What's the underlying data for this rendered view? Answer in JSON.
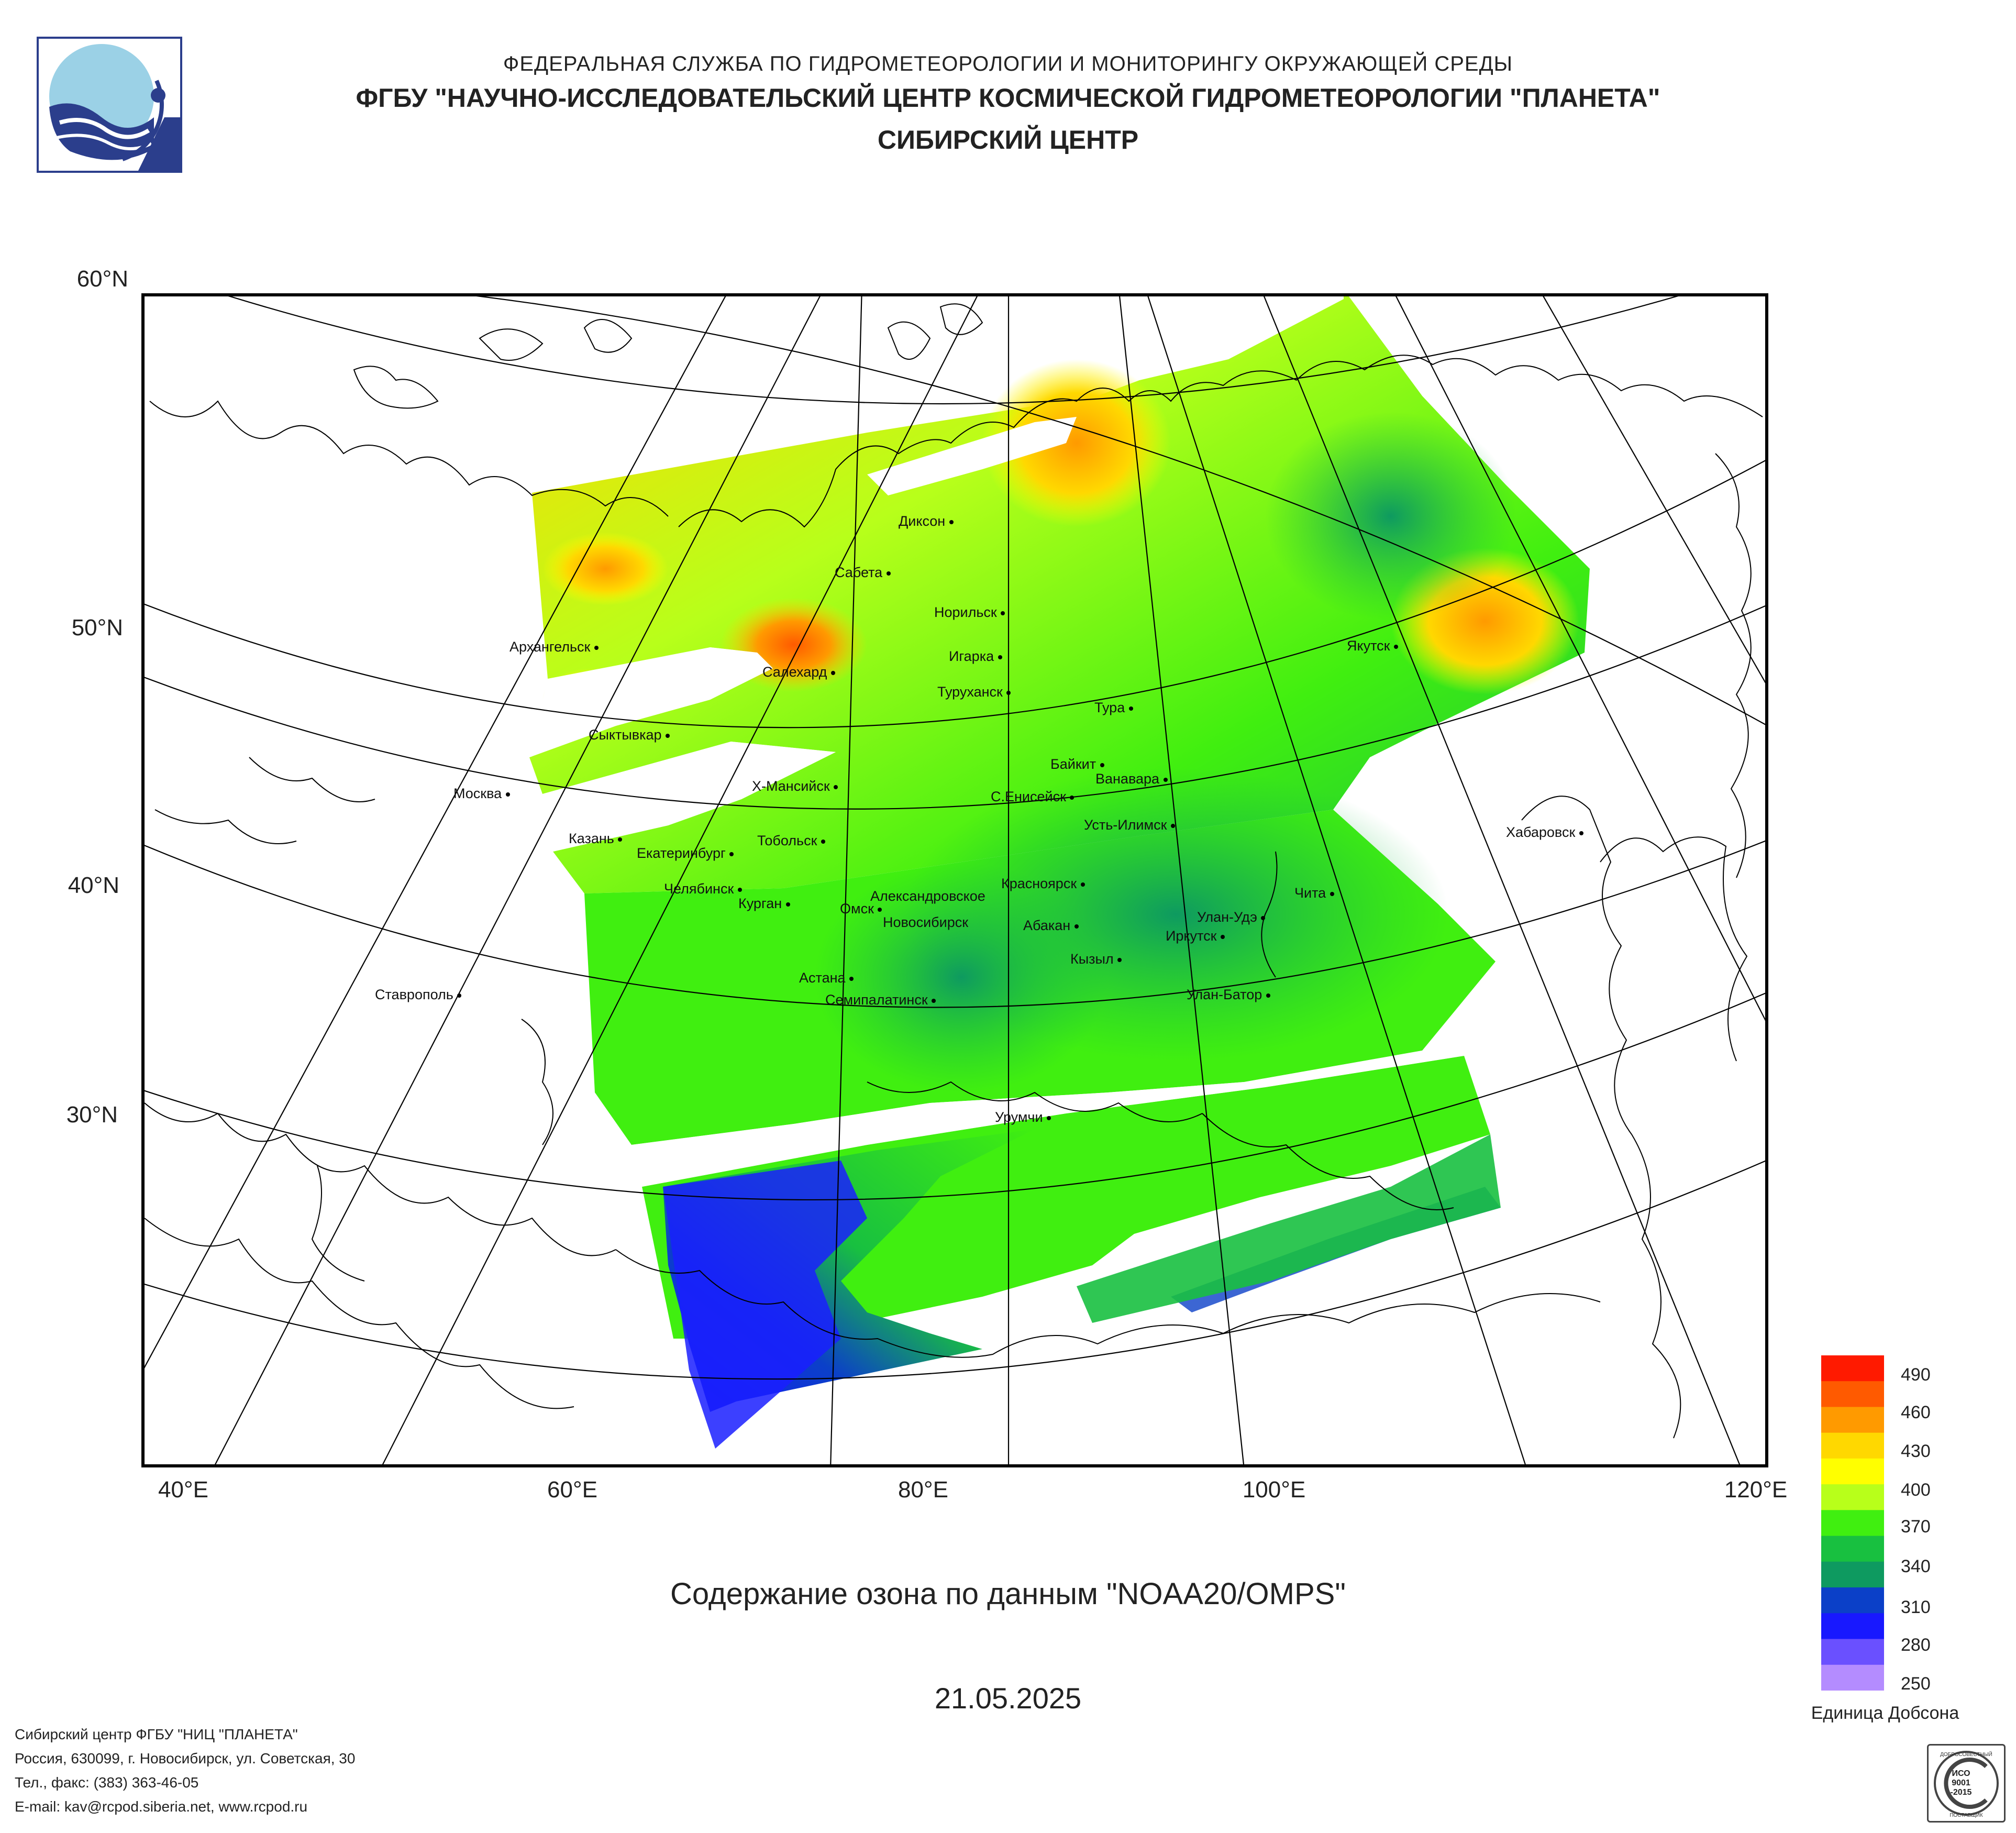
{
  "header": {
    "line1": "ФЕДЕРАЛЬНАЯ СЛУЖБА ПО ГИДРОМЕТЕОРОЛОГИИ И МОНИТОРИНГУ ОКРУЖАЮЩЕЙ СРЕДЫ",
    "line2": "ФГБУ \"НАУЧНО-ИССЛЕДОВАТЕЛЬСКИЙ ЦЕНТР КОСМИЧЕСКОЙ ГИДРОМЕТЕОРОЛОГИИ \"ПЛАНЕТА\"",
    "line3": "СИБИРСКИЙ ЦЕНТР"
  },
  "map": {
    "lat_labels": [
      "60°N",
      "50°N",
      "40°N",
      "30°N"
    ],
    "lon_labels": [
      "40°E",
      "60°E",
      "80°E",
      "100°E",
      "120°E"
    ],
    "cities": [
      {
        "name": "Диксон"
      },
      {
        "name": "Сабета"
      },
      {
        "name": "Норильск"
      },
      {
        "name": "Архангельск"
      },
      {
        "name": "Салехард"
      },
      {
        "name": "Игарка"
      },
      {
        "name": "Якутск"
      },
      {
        "name": "Туруханск"
      },
      {
        "name": "Тура"
      },
      {
        "name": "Сыктывкар"
      },
      {
        "name": "Байкит"
      },
      {
        "name": "Ванавара"
      },
      {
        "name": "Москва"
      },
      {
        "name": "Х-Мансийск"
      },
      {
        "name": "С.Енисейск"
      },
      {
        "name": "Усть-Илимск"
      },
      {
        "name": "Хабаровск"
      },
      {
        "name": "Казань"
      },
      {
        "name": "Тобольск"
      },
      {
        "name": "Екатеринбург"
      },
      {
        "name": "Красноярск"
      },
      {
        "name": "Челябинск"
      },
      {
        "name": "Александровское"
      },
      {
        "name": "Курган"
      },
      {
        "name": "Омск"
      },
      {
        "name": "Чита"
      },
      {
        "name": "Новосибирск"
      },
      {
        "name": "Улан-Удэ"
      },
      {
        "name": "Абакан"
      },
      {
        "name": "Иркутск"
      },
      {
        "name": "Кызыл"
      },
      {
        "name": "Астана"
      },
      {
        "name": "Улан-Батор"
      },
      {
        "name": "Ставрополь"
      },
      {
        "name": "Семипалатинск"
      },
      {
        "name": "Урумчи"
      }
    ]
  },
  "caption": "Содержание озона по данным \"NOAA20/OMPS\"",
  "date": "21.05.2025",
  "legend": {
    "labels": [
      "490",
      "460",
      "430",
      "400",
      "370",
      "340",
      "310",
      "280",
      "250"
    ],
    "unit": "Единица Добсона",
    "colors": [
      "#ff1a00",
      "#ff5a00",
      "#ff9a00",
      "#ffd800",
      "#ffff00",
      "#b8ff1a",
      "#40ef10",
      "#18c040",
      "#0e9a60",
      "#0b40c8",
      "#1818ff",
      "#6a50ff",
      "#b48cff"
    ]
  },
  "footer": {
    "org": "Сибирский центр ФГБУ \"НИЦ \"ПЛАНЕТА\"",
    "address": "Россия, 630099, г. Новосибирск, ул. Советская, 30",
    "phone": "Тел., факс: (383) 363-46-05",
    "email": "E-mail: kav@rcpod.siberia.net, www.rcpod.ru"
  },
  "certificate": {
    "top": "ДОБРОСОВЕСТНЫЙ",
    "code1": "ИСО",
    "code2": "9001",
    "code3": "-2015",
    "bottom": "ПОСТАВЩИК"
  }
}
